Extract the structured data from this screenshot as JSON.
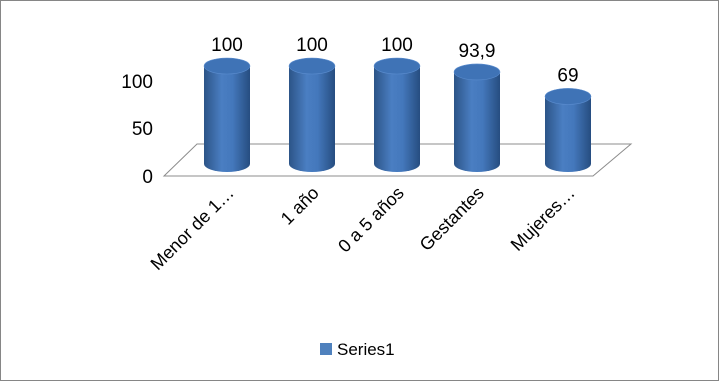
{
  "chart_data": {
    "type": "bar",
    "categories": [
      "Menor de 1…",
      "1 año",
      "0 a 5 años",
      "Gestantes",
      "Mujeres…"
    ],
    "series": [
      {
        "name": "Series1",
        "values": [
          100,
          100,
          100,
          93.9,
          69
        ],
        "data_labels": [
          "100",
          "100",
          "100",
          "93,9",
          "69"
        ],
        "color": "#4f81bd"
      }
    ],
    "y_ticks": [
      "0",
      "50",
      "100"
    ],
    "ylim": [
      0,
      100
    ],
    "grid": false,
    "legend": "bottom",
    "style": "3d-cylinder"
  }
}
